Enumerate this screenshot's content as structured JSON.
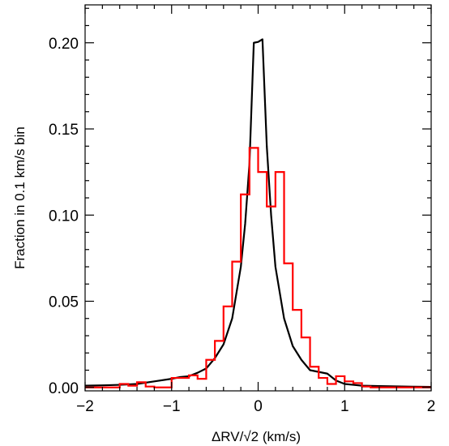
{
  "chart_data": {
    "type": "line",
    "title": "",
    "xlabel": "ΔRV/√2  (km/s)",
    "ylabel": "Fraction in 0.1 km/s bin",
    "xlim": [
      -2,
      2
    ],
    "ylim": [
      -0.002,
      0.222
    ],
    "x_ticks": [
      -2,
      -1,
      0,
      1,
      2
    ],
    "x_tick_labels": [
      "−2",
      "−1",
      "0",
      "1",
      "2"
    ],
    "y_ticks": [
      0.0,
      0.05,
      0.1,
      0.15,
      0.2
    ],
    "y_tick_labels": [
      "0.00",
      "0.05",
      "0.10",
      "0.15",
      "0.20"
    ],
    "grid": false,
    "series": [
      {
        "kind": "line",
        "color": "#000000",
        "x": [
          -2.0,
          -1.8,
          -1.6,
          -1.4,
          -1.2,
          -1.0,
          -0.9,
          -0.8,
          -0.7,
          -0.6,
          -0.5,
          -0.4,
          -0.3,
          -0.2,
          -0.15,
          -0.1,
          -0.05,
          0.0,
          0.05,
          0.1,
          0.15,
          0.2,
          0.3,
          0.4,
          0.5,
          0.6,
          0.7,
          0.8,
          0.9,
          1.0,
          1.1,
          1.2,
          1.4,
          1.6,
          1.8,
          2.0
        ],
        "y": [
          0.001,
          0.0012,
          0.0015,
          0.002,
          0.0035,
          0.005,
          0.006,
          0.0065,
          0.0085,
          0.011,
          0.017,
          0.025,
          0.04,
          0.07,
          0.095,
          0.13,
          0.2,
          0.2005,
          0.202,
          0.14,
          0.1,
          0.07,
          0.04,
          0.024,
          0.016,
          0.01,
          0.009,
          0.008,
          0.004,
          0.002,
          0.0015,
          0.001,
          0.0008,
          0.0006,
          0.0004,
          0.0003
        ]
      },
      {
        "kind": "step",
        "color": "#ff0000",
        "bin_edges": [
          -2.0,
          -1.9,
          -1.8,
          -1.7,
          -1.6,
          -1.5,
          -1.4,
          -1.3,
          -1.2,
          -1.1,
          -1.0,
          -0.9,
          -0.8,
          -0.7,
          -0.6,
          -0.5,
          -0.4,
          -0.3,
          -0.2,
          -0.1,
          0.0,
          0.1,
          0.2,
          0.3,
          0.4,
          0.5,
          0.6,
          0.7,
          0.8,
          0.9,
          1.0,
          1.1,
          1.2,
          1.3,
          1.4,
          1.5,
          1.6,
          1.7,
          1.8,
          1.9,
          2.0
        ],
        "values": [
          0.0,
          0.0,
          0.0,
          0.0,
          0.002,
          0.001,
          0.003,
          0.0005,
          0.0,
          0.0,
          0.0055,
          0.0055,
          0.007,
          0.005,
          0.016,
          0.027,
          0.047,
          0.073,
          0.112,
          0.139,
          0.125,
          0.105,
          0.125,
          0.072,
          0.045,
          0.029,
          0.012,
          0.0055,
          0.002,
          0.0065,
          0.0035,
          0.0025,
          0.0005,
          0.0,
          0.0,
          0.0,
          0.0,
          0.0,
          0.0,
          0.0
        ]
      }
    ]
  }
}
